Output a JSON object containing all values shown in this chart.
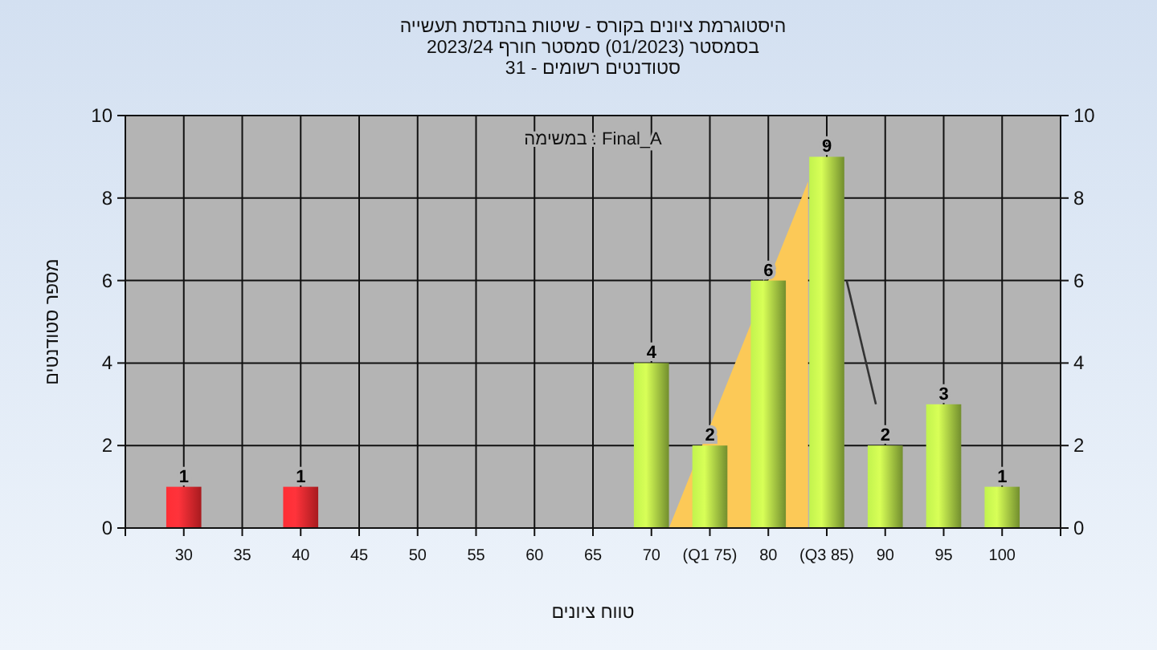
{
  "chart_data": {
    "type": "bar",
    "title": "היסטוגרמת ציונים בקורס - שיטות בהנדסת תעשייה",
    "subtitle": "בסמסטר  (01/2023)  סמסטר חורף 2023/24\nסטודנטים רשומים - 31",
    "xlabel": "טווח ציונים",
    "ylabel": "מספר סטודנטים",
    "annotations": [
      "במשימה : Final_A"
    ],
    "x": [
      30,
      40,
      70,
      75,
      80,
      85,
      90,
      95,
      100
    ],
    "series": [
      {
        "type": "area",
        "color": "#fcc957",
        "x": [
          71.5,
          83.4
        ],
        "values": [
          0,
          8.4
        ]
      },
      {
        "type": "line",
        "color": "#333333",
        "x": [
          86.7,
          89.2
        ],
        "values": [
          6,
          3
        ]
      },
      {
        "colors": [
          "#e8252b",
          "#e8252b",
          "#9dc43f",
          "#9dc43f",
          "#9dc43f",
          "#9dc43f",
          "#9dc43f",
          "#9dc43f",
          "#9dc43f"
        ],
        "values": [
          1,
          1,
          4,
          2,
          6,
          9,
          2,
          3,
          1
        ],
        "value_labels": [
          "1",
          "1",
          "4",
          "2",
          "6",
          "9",
          "2",
          "3",
          "1"
        ]
      }
    ],
    "grid": true,
    "xlim": [
      25,
      105
    ],
    "xticks": [
      {
        "value": 25,
        "label": null
      },
      30,
      35,
      40,
      45,
      50,
      55,
      60,
      65,
      70,
      {
        "value": 75,
        "label": "(Q1 75)"
      },
      80,
      {
        "value": 85,
        "label": "(Q3 85)"
      },
      90,
      95,
      100,
      {
        "value": 105,
        "label": null
      }
    ],
    "ylim": [
      0,
      10
    ],
    "yticks": [
      0,
      2,
      4,
      6,
      8,
      10
    ],
    "y2lim": [
      0,
      10
    ],
    "y2ticks": [
      0,
      2,
      4,
      6,
      8,
      10
    ]
  }
}
